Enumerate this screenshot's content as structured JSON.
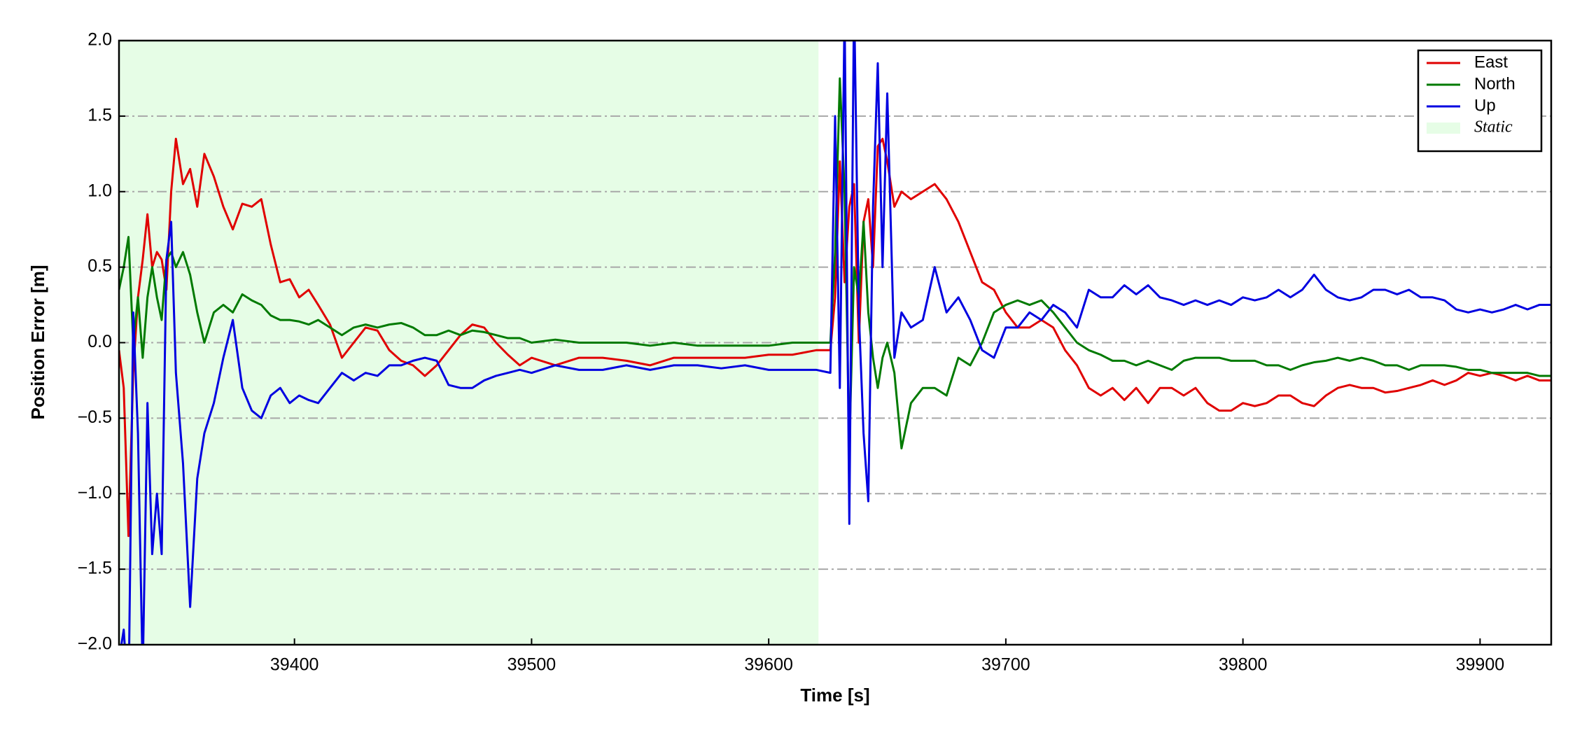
{
  "chart_data": {
    "type": "line",
    "x_label": "Time [s]",
    "y_label": "Position Error [m]",
    "xlim": [
      39326,
      39930
    ],
    "ylim": [
      -2.0,
      2.0
    ],
    "xticks": [
      39400,
      39500,
      39600,
      39700,
      39800,
      39900
    ],
    "yticks": [
      {
        "value": -2.0,
        "label": "−2.0"
      },
      {
        "value": -1.5,
        "label": "−1.5"
      },
      {
        "value": -1.0,
        "label": "−1.0"
      },
      {
        "value": -0.5,
        "label": "−0.5"
      },
      {
        "value": 0.0,
        "label": "0.0"
      },
      {
        "value": 0.5,
        "label": "0.5"
      },
      {
        "value": 1.0,
        "label": "1.0"
      },
      {
        "value": 1.5,
        "label": "1.5"
      },
      {
        "value": 2.0,
        "label": "2.0"
      }
    ],
    "grid": "y",
    "legend": "upper right",
    "shaded_region": {
      "name": "Static",
      "x_range": [
        39326,
        39621
      ],
      "color": "#e6fde6"
    },
    "x": [
      39326,
      39328,
      39330,
      39332,
      39334,
      39336,
      39338,
      39340,
      39342,
      39344,
      39346,
      39348,
      39350,
      39353,
      39356,
      39359,
      39362,
      39366,
      39370,
      39374,
      39378,
      39382,
      39386,
      39390,
      39394,
      39398,
      39402,
      39406,
      39410,
      39415,
      39420,
      39425,
      39430,
      39435,
      39440,
      39445,
      39450,
      39455,
      39460,
      39465,
      39470,
      39475,
      39480,
      39485,
      39490,
      39495,
      39500,
      39510,
      39520,
      39530,
      39540,
      39550,
      39560,
      39570,
      39580,
      39590,
      39600,
      39610,
      39620,
      39626,
      39628,
      39630,
      39632,
      39634,
      39636,
      39638,
      39640,
      39642,
      39644,
      39646,
      39648,
      39650,
      39653,
      39656,
      39660,
      39665,
      39670,
      39675,
      39680,
      39685,
      39690,
      39695,
      39700,
      39705,
      39710,
      39715,
      39720,
      39725,
      39730,
      39735,
      39740,
      39745,
      39750,
      39755,
      39760,
      39765,
      39770,
      39775,
      39780,
      39785,
      39790,
      39795,
      39800,
      39805,
      39810,
      39815,
      39820,
      39825,
      39830,
      39835,
      39840,
      39845,
      39850,
      39855,
      39860,
      39865,
      39870,
      39875,
      39880,
      39885,
      39890,
      39895,
      39900,
      39905,
      39910,
      39915,
      39920,
      39925,
      39930
    ],
    "series": [
      {
        "name": "East",
        "color": "#e00000",
        "values": [
          -0.05,
          -0.3,
          -1.28,
          -0.2,
          0.3,
          0.55,
          0.85,
          0.5,
          0.6,
          0.55,
          0.35,
          1.0,
          1.35,
          1.05,
          1.15,
          0.9,
          1.25,
          1.1,
          0.9,
          0.75,
          0.92,
          0.9,
          0.95,
          0.65,
          0.4,
          0.42,
          0.3,
          0.35,
          0.25,
          0.12,
          -0.1,
          0.0,
          0.1,
          0.08,
          -0.05,
          -0.12,
          -0.15,
          -0.22,
          -0.15,
          -0.05,
          0.05,
          0.12,
          0.1,
          0.0,
          -0.08,
          -0.15,
          -0.1,
          -0.15,
          -0.1,
          -0.1,
          -0.12,
          -0.15,
          -0.1,
          -0.1,
          -0.1,
          -0.1,
          -0.08,
          -0.08,
          -0.05,
          -0.05,
          0.3,
          1.2,
          0.4,
          0.9,
          1.05,
          0.0,
          0.8,
          0.95,
          0.5,
          1.3,
          1.35,
          1.2,
          0.9,
          1.0,
          0.95,
          1.0,
          1.05,
          0.95,
          0.8,
          0.6,
          0.4,
          0.35,
          0.2,
          0.1,
          0.1,
          0.15,
          0.1,
          -0.05,
          -0.15,
          -0.3,
          -0.35,
          -0.3,
          -0.38,
          -0.3,
          -0.4,
          -0.3,
          -0.3,
          -0.35,
          -0.3,
          -0.4,
          -0.45,
          -0.45,
          -0.4,
          -0.42,
          -0.4,
          -0.35,
          -0.35,
          -0.4,
          -0.42,
          -0.35,
          -0.3,
          -0.28,
          -0.3,
          -0.3,
          -0.33,
          -0.32,
          -0.3,
          -0.28,
          -0.25,
          -0.28,
          -0.25,
          -0.2,
          -0.22,
          -0.2,
          -0.22,
          -0.25,
          -0.22,
          -0.25,
          -0.25
        ]
      },
      {
        "name": "North",
        "color": "#007a00",
        "values": [
          0.35,
          0.5,
          0.7,
          0.0,
          0.3,
          -0.1,
          0.3,
          0.5,
          0.3,
          0.15,
          0.55,
          0.6,
          0.5,
          0.6,
          0.45,
          0.2,
          0.0,
          0.2,
          0.25,
          0.2,
          0.32,
          0.28,
          0.25,
          0.18,
          0.15,
          0.15,
          0.14,
          0.12,
          0.15,
          0.1,
          0.05,
          0.1,
          0.12,
          0.1,
          0.12,
          0.13,
          0.1,
          0.05,
          0.05,
          0.08,
          0.05,
          0.08,
          0.07,
          0.05,
          0.03,
          0.03,
          0.0,
          0.02,
          0.0,
          0.0,
          0.0,
          -0.02,
          0.0,
          -0.02,
          -0.02,
          -0.02,
          -0.02,
          0.0,
          0.0,
          0.0,
          0.6,
          1.75,
          1.0,
          -0.7,
          0.5,
          0.3,
          0.8,
          0.2,
          -0.1,
          -0.3,
          -0.1,
          0.0,
          -0.2,
          -0.7,
          -0.4,
          -0.3,
          -0.3,
          -0.35,
          -0.1,
          -0.15,
          0.0,
          0.2,
          0.25,
          0.28,
          0.25,
          0.28,
          0.2,
          0.1,
          0.0,
          -0.05,
          -0.08,
          -0.12,
          -0.12,
          -0.15,
          -0.12,
          -0.15,
          -0.18,
          -0.12,
          -0.1,
          -0.1,
          -0.1,
          -0.12,
          -0.12,
          -0.12,
          -0.15,
          -0.15,
          -0.18,
          -0.15,
          -0.13,
          -0.12,
          -0.1,
          -0.12,
          -0.1,
          -0.12,
          -0.15,
          -0.15,
          -0.18,
          -0.15,
          -0.15,
          -0.15,
          -0.16,
          -0.18,
          -0.18,
          -0.2,
          -0.2,
          -0.2,
          -0.2,
          -0.22,
          -0.22
        ]
      },
      {
        "name": "Up",
        "color": "#0000e0",
        "values": [
          -2.1,
          -1.9,
          -2.4,
          0.2,
          -0.6,
          -2.2,
          -0.4,
          -1.4,
          -1.0,
          -1.4,
          0.55,
          0.8,
          -0.2,
          -0.8,
          -1.75,
          -0.9,
          -0.6,
          -0.4,
          -0.1,
          0.15,
          -0.3,
          -0.45,
          -0.5,
          -0.35,
          -0.3,
          -0.4,
          -0.35,
          -0.38,
          -0.4,
          -0.3,
          -0.2,
          -0.25,
          -0.2,
          -0.22,
          -0.15,
          -0.15,
          -0.12,
          -0.1,
          -0.12,
          -0.28,
          -0.3,
          -0.3,
          -0.25,
          -0.22,
          -0.2,
          -0.18,
          -0.2,
          -0.15,
          -0.18,
          -0.18,
          -0.15,
          -0.18,
          -0.15,
          -0.15,
          -0.17,
          -0.15,
          -0.18,
          -0.18,
          -0.18,
          -0.2,
          1.5,
          -0.3,
          2.2,
          -1.2,
          2.3,
          0.2,
          -0.6,
          -1.05,
          0.9,
          1.85,
          0.5,
          1.65,
          -0.1,
          0.2,
          0.1,
          0.15,
          0.5,
          0.2,
          0.3,
          0.15,
          -0.05,
          -0.1,
          0.1,
          0.1,
          0.2,
          0.15,
          0.25,
          0.2,
          0.1,
          0.35,
          0.3,
          0.3,
          0.38,
          0.32,
          0.38,
          0.3,
          0.28,
          0.25,
          0.28,
          0.25,
          0.28,
          0.25,
          0.3,
          0.28,
          0.3,
          0.35,
          0.3,
          0.35,
          0.45,
          0.35,
          0.3,
          0.28,
          0.3,
          0.35,
          0.35,
          0.32,
          0.35,
          0.3,
          0.3,
          0.28,
          0.22,
          0.2,
          0.22,
          0.2,
          0.22,
          0.25,
          0.22,
          0.25,
          0.25
        ]
      }
    ]
  }
}
